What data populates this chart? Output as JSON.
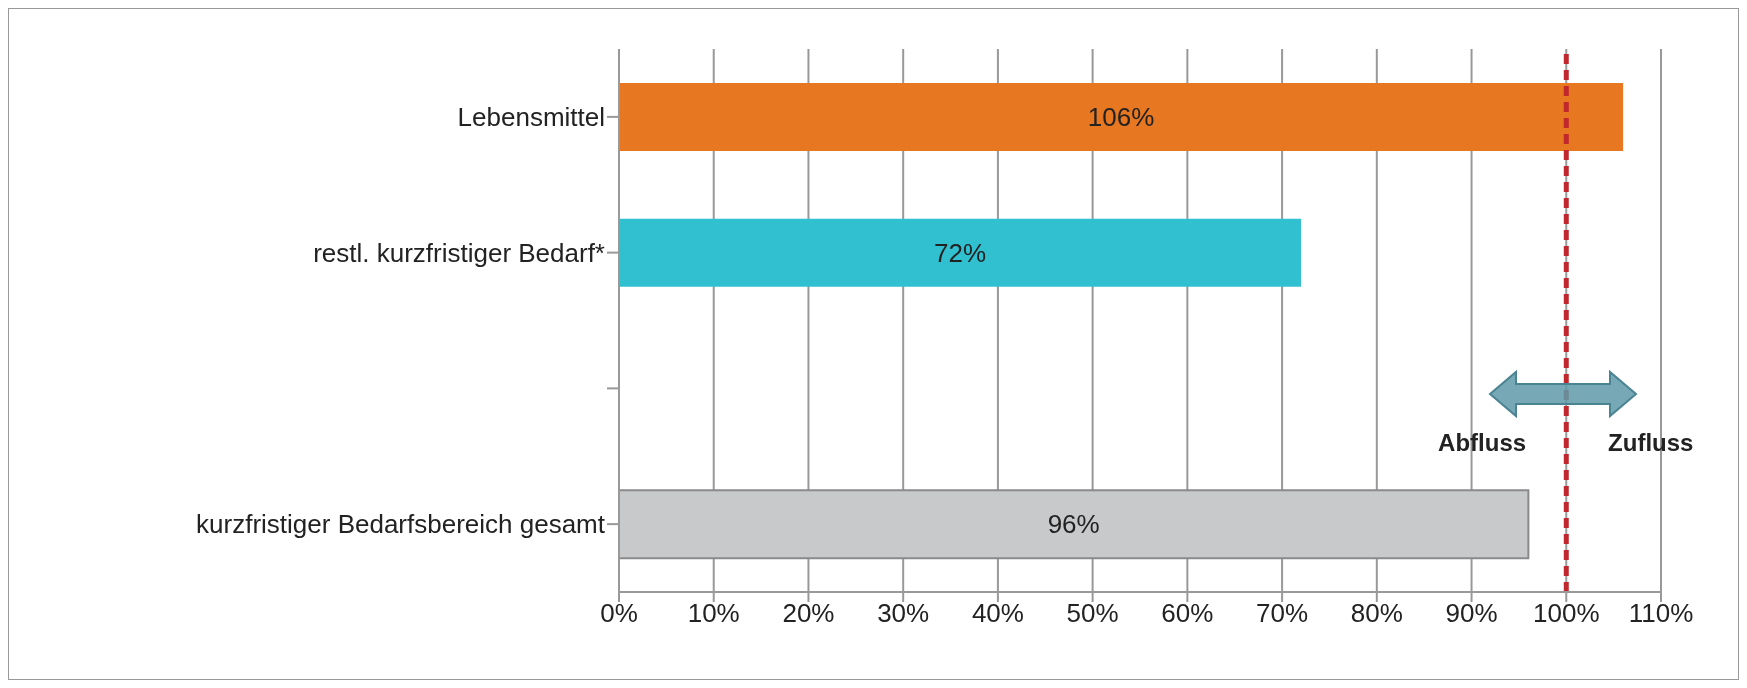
{
  "chart_data": {
    "type": "bar",
    "orientation": "horizontal",
    "categories": [
      "Lebensmittel",
      "restl. kurzfristiger Bedarf*",
      null,
      "kurzfristiger Bedarfsbereich gesamt"
    ],
    "values": [
      106,
      72,
      null,
      96
    ],
    "colors": [
      "#e87722",
      "#31c0d0",
      null,
      "#c8c9cb"
    ],
    "value_labels": [
      "106%",
      "72%",
      null,
      "96%"
    ],
    "xlim": [
      0,
      110
    ],
    "xticks": [
      {
        "value": 0,
        "label": "0%"
      },
      {
        "value": 10,
        "label": "10%"
      },
      {
        "value": 20,
        "label": "20%"
      },
      {
        "value": 30,
        "label": "30%"
      },
      {
        "value": 40,
        "label": "40%"
      },
      {
        "value": 50,
        "label": "50%"
      },
      {
        "value": 60,
        "label": "60%"
      },
      {
        "value": 70,
        "label": "70%"
      },
      {
        "value": 80,
        "label": "80%"
      },
      {
        "value": 90,
        "label": "90%"
      },
      {
        "value": 100,
        "label": "100%"
      },
      {
        "value": 110,
        "label": "110%"
      }
    ],
    "grid": "x",
    "ref_lines": [
      {
        "axis": "x",
        "value": 100,
        "color": "#c0282d",
        "line_style": "dashed"
      }
    ],
    "annotations": [
      "Abfluss",
      "Zufluss"
    ]
  }
}
